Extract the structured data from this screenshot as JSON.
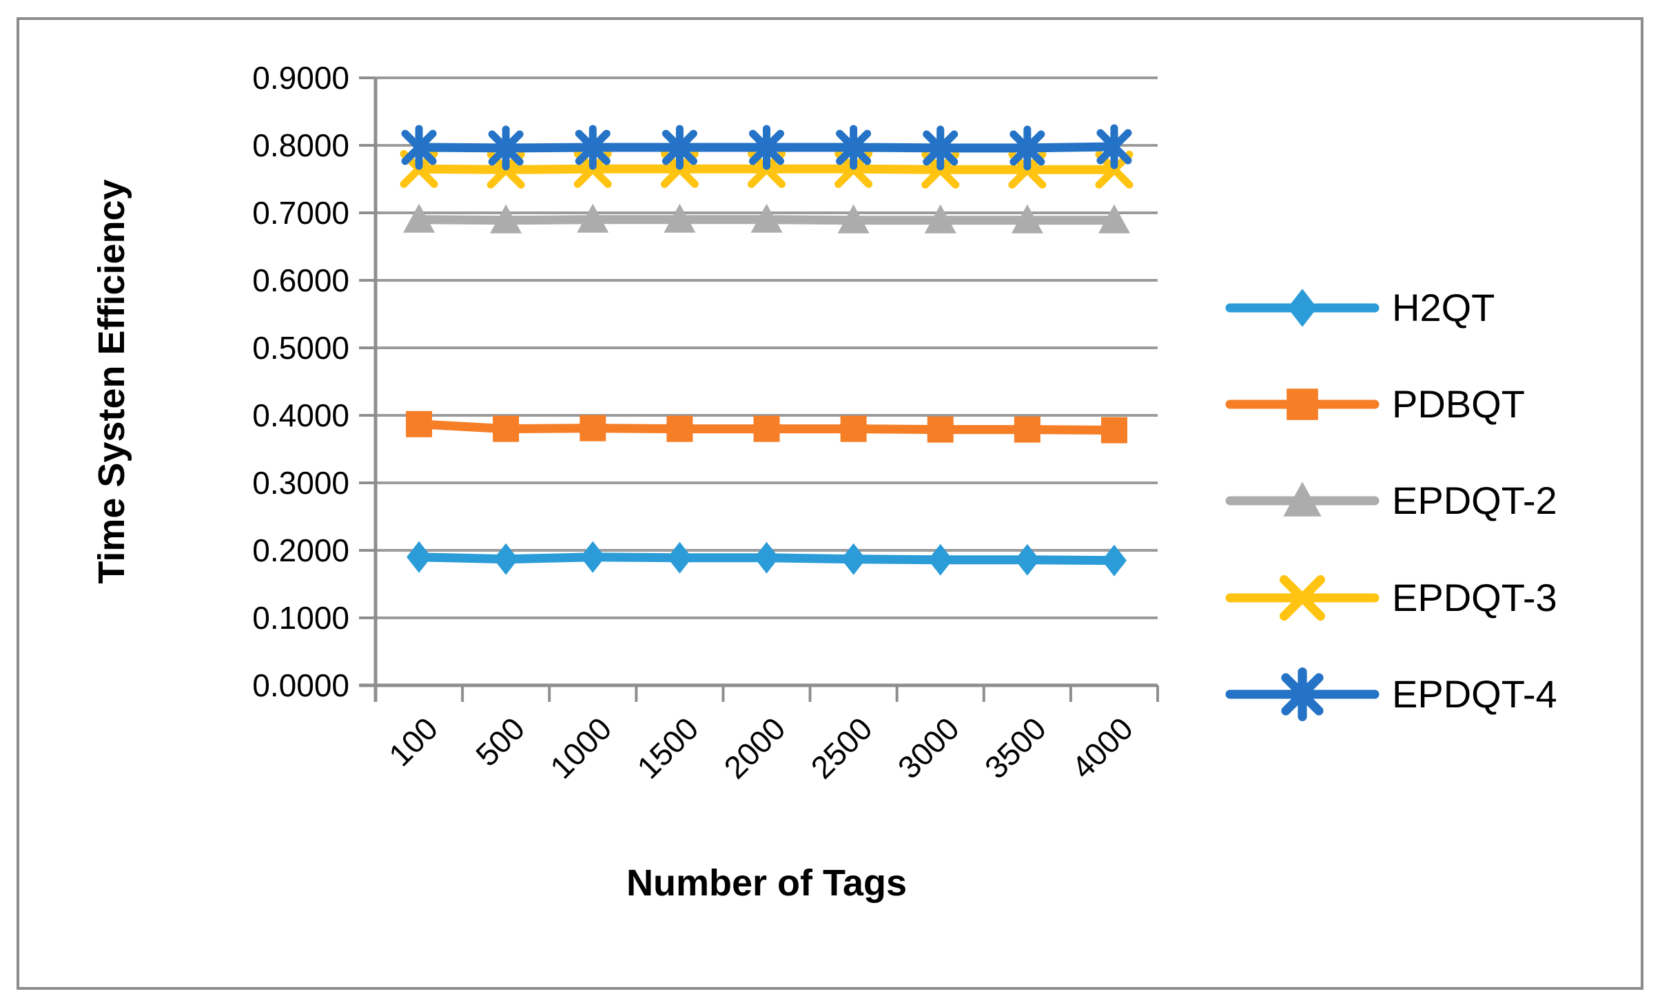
{
  "figure": {
    "background": "#FFFFFF",
    "border_color": "#8C8C8C",
    "grid_color": "#9B9B9B",
    "axis_color": "#8E8E8E",
    "text_color": "#000000"
  },
  "chart_data": {
    "type": "line",
    "title": "",
    "xlabel": "Number of Tags",
    "ylabel": "Time Systen Efficiency",
    "categories": [
      "100",
      "500",
      "1000",
      "1500",
      "2000",
      "2500",
      "3000",
      "3500",
      "4000"
    ],
    "y_ticks": [
      "0.0000",
      "0.1000",
      "0.2000",
      "0.3000",
      "0.4000",
      "0.5000",
      "0.6000",
      "0.7000",
      "0.8000",
      "0.9000"
    ],
    "ylim": [
      0.0,
      0.9
    ],
    "grid": true,
    "legend_position": "right",
    "series": [
      {
        "name": "H2QT",
        "color": "#2B9CD8",
        "marker": "diamond",
        "values": [
          0.19,
          0.187,
          0.19,
          0.189,
          0.189,
          0.187,
          0.186,
          0.186,
          0.185
        ]
      },
      {
        "name": "PDBQT",
        "color": "#F57E27",
        "marker": "square",
        "values": [
          0.387,
          0.38,
          0.381,
          0.38,
          0.38,
          0.38,
          0.379,
          0.379,
          0.378
        ]
      },
      {
        "name": "EPDQT-2",
        "color": "#ACACAC",
        "marker": "triangle",
        "values": [
          0.69,
          0.689,
          0.69,
          0.69,
          0.69,
          0.689,
          0.689,
          0.689,
          0.689
        ]
      },
      {
        "name": "EPDQT-3",
        "color": "#FFC411",
        "marker": "x",
        "values": [
          0.765,
          0.764,
          0.765,
          0.765,
          0.765,
          0.765,
          0.764,
          0.764,
          0.764
        ]
      },
      {
        "name": "EPDQT-4",
        "color": "#2473C6",
        "marker": "star",
        "values": [
          0.797,
          0.796,
          0.797,
          0.797,
          0.797,
          0.797,
          0.796,
          0.796,
          0.798
        ]
      }
    ]
  }
}
